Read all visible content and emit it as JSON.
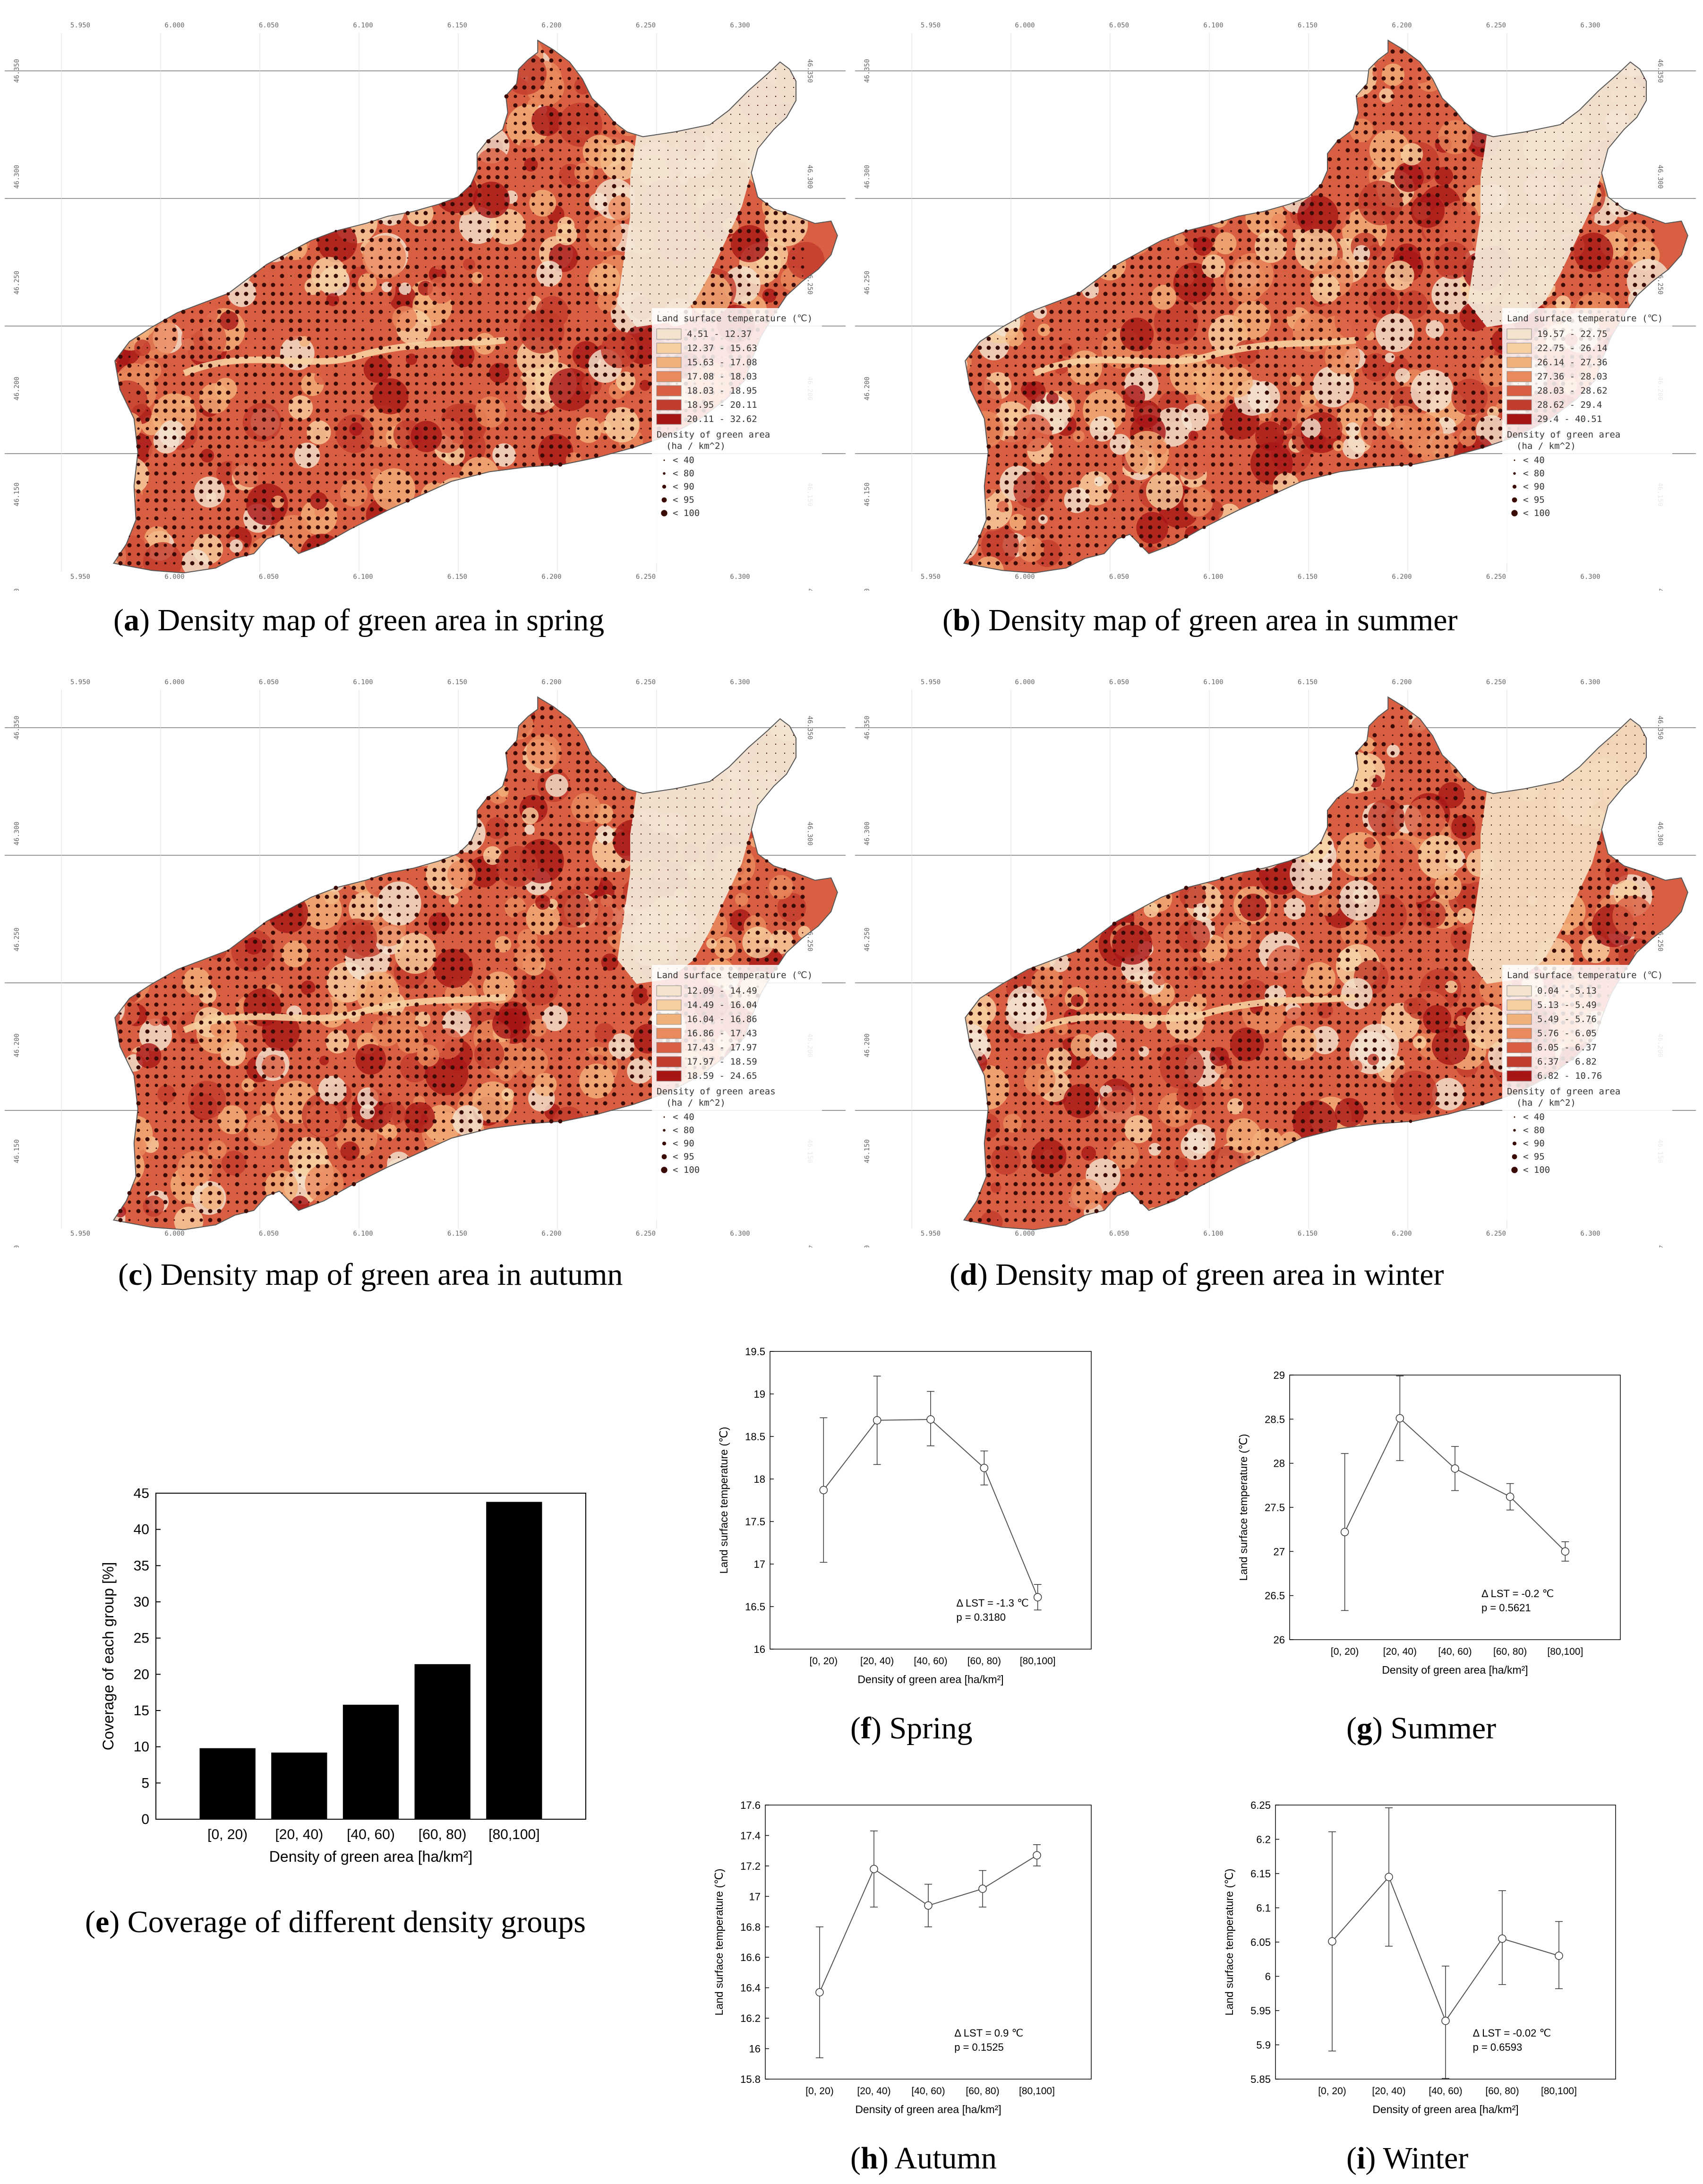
{
  "colors": {
    "land_ramp": [
      "#f3e3cf",
      "#f6cfa0",
      "#f2b07a",
      "#ea8a5c",
      "#d95f43",
      "#c23b2c",
      "#a81515"
    ],
    "dot": "#3a0a05",
    "bar": "#000000"
  },
  "maps": [
    {
      "id": "a",
      "caption_letter": "a",
      "caption_text": ") Density map of green area in spring",
      "season_key": "spring",
      "legend_title": "Land surface temperature (℃)",
      "legend_classes": [
        "4.51 - 12.37",
        "12.37 - 15.63",
        "15.63 - 17.08",
        "17.08 - 18.03",
        "18.03 - 18.95",
        "18.95 - 20.11",
        "20.11 - 32.62"
      ],
      "density_title": "Density of green area",
      "density_unit": "(ha / km^2)",
      "density_classes": [
        "< 40",
        "< 80",
        "< 90",
        "< 95",
        "< 100"
      ],
      "x_ticks": [
        "5.950",
        "6.000",
        "6.050",
        "6.100",
        "6.150",
        "6.200",
        "6.250",
        "6.300"
      ],
      "y_ticks": [
        "46.350",
        "46.300",
        "46.250",
        "46.200",
        "46.150",
        "46.100"
      ]
    },
    {
      "id": "b",
      "caption_letter": "b",
      "caption_text": ") Density map of green area in summer",
      "season_key": "summer",
      "legend_title": "Land surface temperature (℃)",
      "legend_classes": [
        "19.57 - 22.75",
        "22.75 - 26.14",
        "26.14 - 27.36",
        "27.36 - 28.03",
        "28.03 - 28.62",
        "28.62 - 29.4",
        "29.4 - 40.51"
      ],
      "density_title": "Density of green area",
      "density_unit": "(ha / km^2)",
      "density_classes": [
        "< 40",
        "< 80",
        "< 90",
        "< 95",
        "< 100"
      ],
      "x_ticks": [
        "5.950",
        "6.000",
        "6.050",
        "6.100",
        "6.150",
        "6.200",
        "6.250",
        "6.300"
      ],
      "y_ticks": [
        "46.350",
        "46.300",
        "46.250",
        "46.200",
        "46.150",
        "46.100"
      ]
    },
    {
      "id": "c",
      "caption_letter": "c",
      "caption_text": ") Density map of green area in autumn",
      "season_key": "autumn",
      "legend_title": "Land surface temperature (℃)",
      "legend_classes": [
        "12.09 - 14.49",
        "14.49 - 16.04",
        "16.04 - 16.86",
        "16.86 - 17.43",
        "17.43 - 17.97",
        "17.97 - 18.59",
        "18.59 - 24.65"
      ],
      "density_title": "Density of green areas",
      "density_unit": "(ha / km^2)",
      "density_classes": [
        "< 40",
        "< 80",
        "< 90",
        "< 95",
        "< 100"
      ],
      "x_ticks": [
        "5.950",
        "6.000",
        "6.050",
        "6.100",
        "6.150",
        "6.200",
        "6.250",
        "6.300"
      ],
      "y_ticks": [
        "46.350",
        "46.300",
        "46.250",
        "46.200",
        "46.150",
        "46.100"
      ]
    },
    {
      "id": "d",
      "caption_letter": "d",
      "caption_text": ") Density map of green area in winter",
      "season_key": "winter",
      "legend_title": "Land surface temperature (℃)",
      "legend_classes": [
        "0.04 - 5.13",
        "5.13 - 5.49",
        "5.49 - 5.76",
        "5.76 - 6.05",
        "6.05 - 6.37",
        "6.37 - 6.82",
        "6.82 - 10.76"
      ],
      "density_title": "Density of green area",
      "density_unit": "(ha / km^2)",
      "density_classes": [
        "< 40",
        "< 80",
        "< 90",
        "< 95",
        "< 100"
      ],
      "x_ticks": [
        "5.950",
        "6.000",
        "6.050",
        "6.100",
        "6.150",
        "6.200",
        "6.250",
        "6.300"
      ],
      "y_ticks": [
        "46.350",
        "46.300",
        "46.250",
        "46.200",
        "46.150",
        "46.100"
      ]
    }
  ],
  "captions": {
    "e": {
      "letter": "e",
      "text": ") Coverage of different density groups"
    },
    "f": {
      "letter": "f",
      "text": ") Spring"
    },
    "g": {
      "letter": "g",
      "text": ") Summer"
    },
    "h": {
      "letter": "h",
      "text": ") Autumn"
    },
    "i": {
      "letter": "i",
      "text": ") Winter"
    }
  },
  "chart_data": [
    {
      "id": "e",
      "type": "bar",
      "categories": [
        "[0, 20)",
        "[20, 40)",
        "[40, 60)",
        "[60, 80)",
        "[80,100]"
      ],
      "values": [
        9.8,
        9.2,
        15.8,
        21.4,
        43.8
      ],
      "xlabel": "Density of green area [ha/km²]",
      "ylabel": "Coverage of each group [%]",
      "ylim": [
        0,
        45
      ],
      "yticks": [
        "0",
        "5",
        "10",
        "15",
        "20",
        "25",
        "30",
        "35",
        "40",
        "45"
      ]
    },
    {
      "id": "f",
      "type": "line",
      "categories": [
        "[0, 20)",
        "[20, 40)",
        "[40, 60)",
        "[60, 80)",
        "[80,100]"
      ],
      "values": [
        17.87,
        18.69,
        18.7,
        18.13,
        16.61
      ],
      "err_low": [
        17.02,
        18.17,
        18.39,
        17.93,
        16.46
      ],
      "err_high": [
        18.72,
        19.21,
        19.03,
        18.33,
        16.76
      ],
      "xlabel": "Density of green area [ha/km²]",
      "ylabel": "Land surface temperature (℃)",
      "ylim": [
        16,
        19.5
      ],
      "yticks": [
        "16",
        "16.5",
        "17",
        "17.5",
        "18",
        "18.5",
        "19",
        "19.5"
      ],
      "annotation_1": "Δ LST = -1.3 ℃",
      "annotation_2": "p = 0.3180"
    },
    {
      "id": "g",
      "type": "line",
      "categories": [
        "[0, 20)",
        "[20, 40)",
        "[40, 60)",
        "[60, 80)",
        "[80,100]"
      ],
      "values": [
        27.22,
        28.51,
        27.94,
        27.62,
        27.0
      ],
      "err_low": [
        26.33,
        28.03,
        27.69,
        27.47,
        26.89
      ],
      "err_high": [
        28.11,
        28.99,
        28.19,
        27.77,
        27.11
      ],
      "xlabel": "Density of green area [ha/km²]",
      "ylabel": "Land surface temperature (℃)",
      "ylim": [
        26,
        29
      ],
      "yticks": [
        "26",
        "26.5",
        "27",
        "27.5",
        "28",
        "28.5",
        "29"
      ],
      "annotation_1": "Δ LST = -0.2 ℃",
      "annotation_2": "p = 0.5621"
    },
    {
      "id": "h",
      "type": "line",
      "categories": [
        "[0, 20)",
        "[20, 40)",
        "[40, 60)",
        "[60, 80)",
        "[80,100]"
      ],
      "values": [
        16.37,
        17.18,
        16.94,
        17.05,
        17.27
      ],
      "err_low": [
        15.94,
        16.93,
        16.8,
        16.93,
        17.2
      ],
      "err_high": [
        16.8,
        17.43,
        17.08,
        17.17,
        17.34
      ],
      "xlabel": "Density of green area [ha/km²]",
      "ylabel": "Land surface temperature (℃)",
      "ylim": [
        15.8,
        17.6
      ],
      "yticks": [
        "15.8",
        "16",
        "16.2",
        "16.4",
        "16.6",
        "16.8",
        "17",
        "17.2",
        "17.4",
        "17.6"
      ],
      "annotation_1": "Δ LST = 0.9 ℃",
      "annotation_2": "p = 0.1525"
    },
    {
      "id": "i",
      "type": "line",
      "categories": [
        "[0, 20)",
        "[20, 40)",
        "[40, 60)",
        "[60, 80)",
        "[80,100]"
      ],
      "values": [
        6.051,
        6.145,
        5.935,
        6.055,
        6.03
      ],
      "err_low": [
        5.891,
        6.044,
        5.851,
        5.988,
        5.982
      ],
      "err_high": [
        6.211,
        6.246,
        6.015,
        6.125,
        6.08
      ],
      "xlabel": "Density of green area [ha/km²]",
      "ylabel": "Land surface temperature (℃)",
      "ylim": [
        5.85,
        6.25
      ],
      "yticks": [
        "5.85",
        "5.9",
        "5.95",
        "6",
        "6.05",
        "6.1",
        "6.15",
        "6.2",
        "6.25"
      ],
      "annotation_1": "Δ LST = -0.02 ℃",
      "annotation_2": "p = 0.6593"
    }
  ]
}
